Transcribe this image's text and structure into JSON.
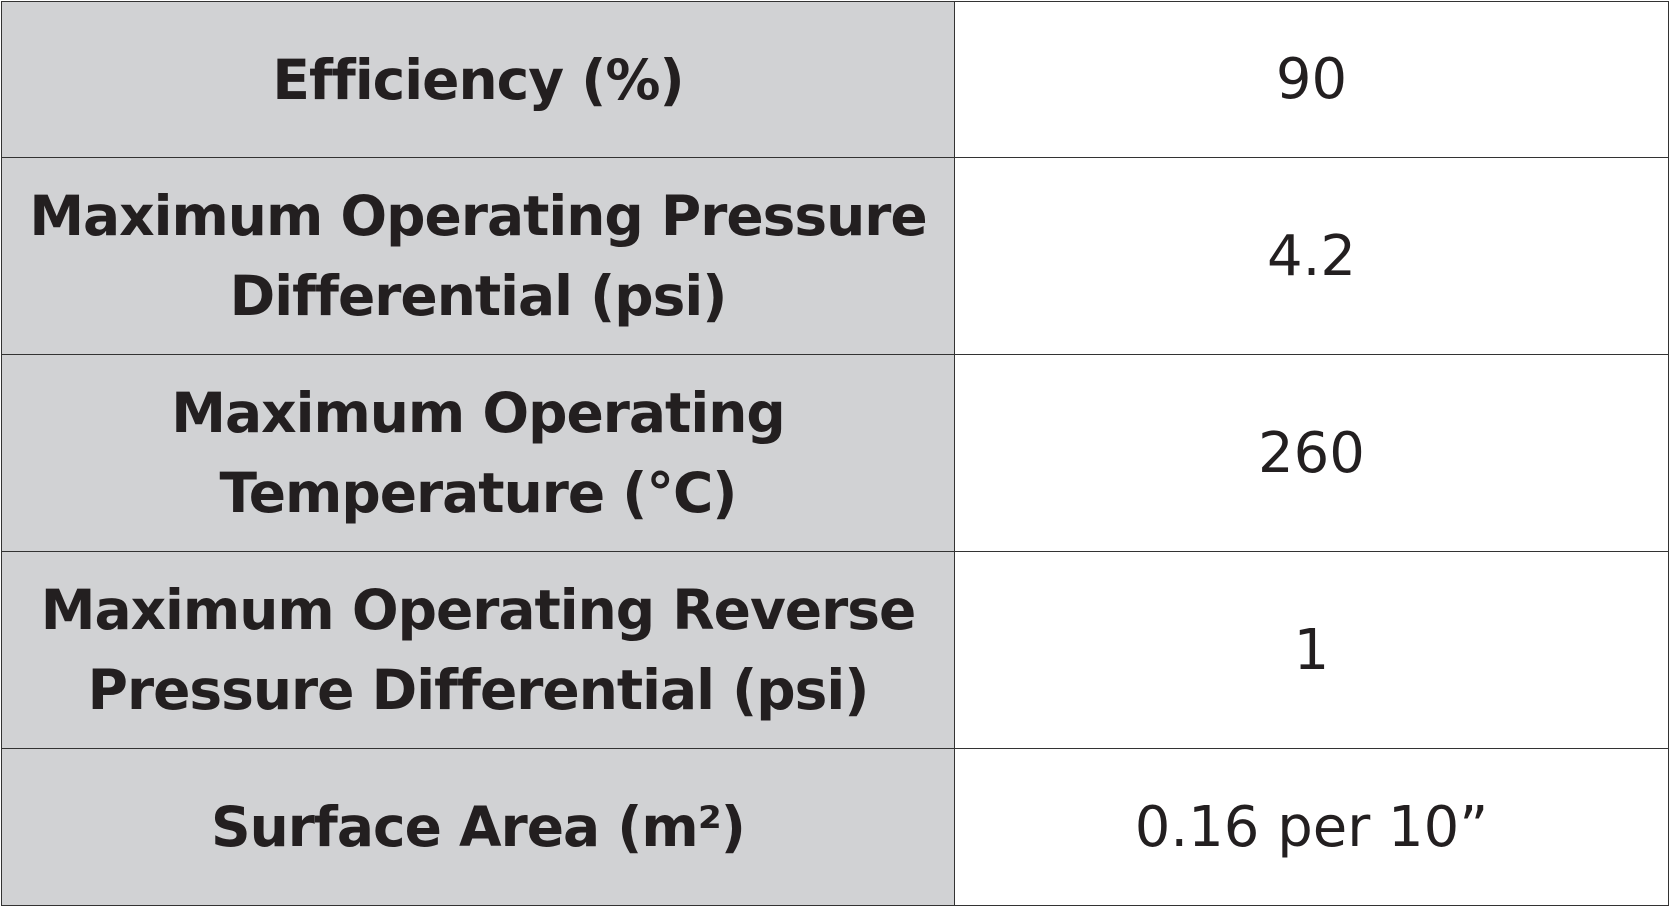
{
  "table": {
    "rows": [
      [
        "Efficiency (%)",
        "90"
      ],
      [
        "Maximum Operating Pressure Differential (psi)",
        "4.2"
      ],
      [
        "Maximum Operating Temperature (°C)",
        "260"
      ],
      [
        "Maximum Operating Reverse Pressure Differential (psi)",
        "1"
      ],
      [
        "Surface Area (m²)",
        "0.16 per 10”"
      ]
    ]
  }
}
